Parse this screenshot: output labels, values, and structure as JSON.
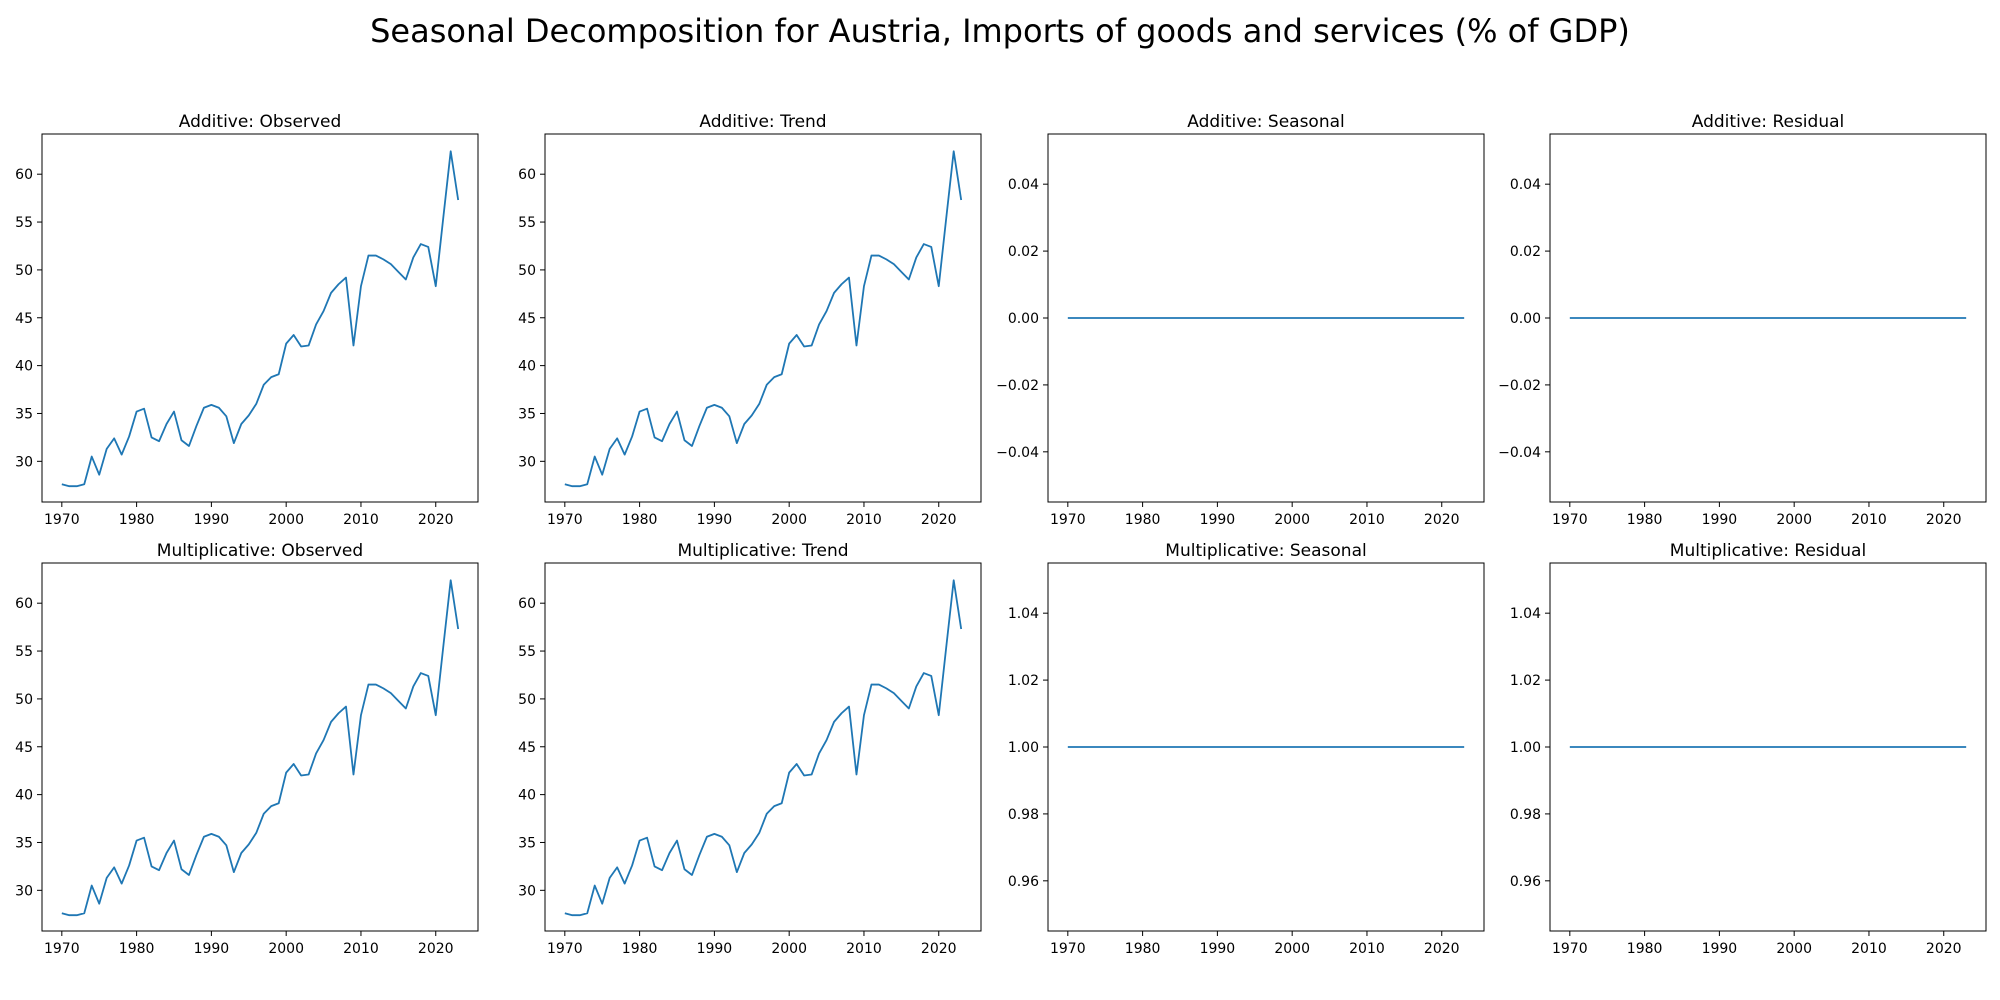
{
  "figure": {
    "title": "Seasonal Decomposition for Austria, Imports of goods and services (% of GDP)",
    "line_color": "#1f77b4"
  },
  "chart_data": [
    {
      "type": "line",
      "title": "Additive: Observed",
      "xlabel": "",
      "ylabel": "",
      "xlim": [
        1967.35,
        2025.65
      ],
      "ylim": [
        25.75,
        64.2
      ],
      "xticks": [
        1970,
        1980,
        1990,
        2000,
        2010,
        2020
      ],
      "yticks": [
        30,
        35,
        40,
        45,
        50,
        55,
        60
      ],
      "ytick_labels": [
        "30",
        "35",
        "40",
        "45",
        "50",
        "55",
        "60"
      ],
      "grid": false,
      "series": [
        {
          "x": [
            1970,
            1971,
            1972,
            1973,
            1974,
            1975,
            1976,
            1977,
            1978,
            1979,
            1980,
            1981,
            1982,
            1983,
            1984,
            1985,
            1986,
            1987,
            1988,
            1989,
            1990,
            1991,
            1992,
            1993,
            1994,
            1995,
            1996,
            1997,
            1998,
            1999,
            2000,
            2001,
            2002,
            2003,
            2004,
            2005,
            2006,
            2007,
            2008,
            2009,
            2010,
            2011,
            2012,
            2013,
            2014,
            2015,
            2016,
            2017,
            2018,
            2019,
            2020,
            2021,
            2022,
            2023
          ],
          "values": [
            27.6,
            27.4,
            27.4,
            27.6,
            30.5,
            28.6,
            31.3,
            32.4,
            30.7,
            32.6,
            35.2,
            35.5,
            32.5,
            32.1,
            33.9,
            35.2,
            32.2,
            31.6,
            33.7,
            35.6,
            35.9,
            35.6,
            34.7,
            31.9,
            33.9,
            34.8,
            36.0,
            38.0,
            38.8,
            39.1,
            42.3,
            43.2,
            42.0,
            42.1,
            44.3,
            45.7,
            47.6,
            48.5,
            49.2,
            42.1,
            48.3,
            51.5,
            51.5,
            51.1,
            50.6,
            49.8,
            49.0,
            51.3,
            52.7,
            52.4,
            48.3,
            55.4,
            62.4,
            57.3
          ]
        }
      ]
    },
    {
      "type": "line",
      "title": "Additive: Trend",
      "xlabel": "",
      "ylabel": "",
      "xlim": [
        1967.35,
        2025.65
      ],
      "ylim": [
        25.75,
        64.2
      ],
      "xticks": [
        1970,
        1980,
        1990,
        2000,
        2010,
        2020
      ],
      "yticks": [
        30,
        35,
        40,
        45,
        50,
        55,
        60
      ],
      "ytick_labels": [
        "30",
        "35",
        "40",
        "45",
        "50",
        "55",
        "60"
      ],
      "grid": false,
      "series": [
        {
          "x": [
            1970,
            1971,
            1972,
            1973,
            1974,
            1975,
            1976,
            1977,
            1978,
            1979,
            1980,
            1981,
            1982,
            1983,
            1984,
            1985,
            1986,
            1987,
            1988,
            1989,
            1990,
            1991,
            1992,
            1993,
            1994,
            1995,
            1996,
            1997,
            1998,
            1999,
            2000,
            2001,
            2002,
            2003,
            2004,
            2005,
            2006,
            2007,
            2008,
            2009,
            2010,
            2011,
            2012,
            2013,
            2014,
            2015,
            2016,
            2017,
            2018,
            2019,
            2020,
            2021,
            2022,
            2023
          ],
          "values": [
            27.6,
            27.4,
            27.4,
            27.6,
            30.5,
            28.6,
            31.3,
            32.4,
            30.7,
            32.6,
            35.2,
            35.5,
            32.5,
            32.1,
            33.9,
            35.2,
            32.2,
            31.6,
            33.7,
            35.6,
            35.9,
            35.6,
            34.7,
            31.9,
            33.9,
            34.8,
            36.0,
            38.0,
            38.8,
            39.1,
            42.3,
            43.2,
            42.0,
            42.1,
            44.3,
            45.7,
            47.6,
            48.5,
            49.2,
            42.1,
            48.3,
            51.5,
            51.5,
            51.1,
            50.6,
            49.8,
            49.0,
            51.3,
            52.7,
            52.4,
            48.3,
            55.4,
            62.4,
            57.3
          ]
        }
      ]
    },
    {
      "type": "line",
      "title": "Additive: Seasonal",
      "xlabel": "",
      "ylabel": "",
      "xlim": [
        1967.35,
        2025.65
      ],
      "ylim": [
        -0.055,
        0.055
      ],
      "xticks": [
        1970,
        1980,
        1990,
        2000,
        2010,
        2020
      ],
      "yticks": [
        -0.04,
        -0.02,
        0.0,
        0.02,
        0.04
      ],
      "ytick_labels": [
        "−0.04",
        "−0.02",
        "0.00",
        "0.02",
        "0.04"
      ],
      "grid": false,
      "series": [
        {
          "x": [
            1970,
            2023
          ],
          "values": [
            0.0,
            0.0
          ]
        }
      ]
    },
    {
      "type": "line",
      "title": "Additive: Residual",
      "xlabel": "",
      "ylabel": "",
      "xlim": [
        1967.35,
        2025.65
      ],
      "ylim": [
        -0.055,
        0.055
      ],
      "xticks": [
        1970,
        1980,
        1990,
        2000,
        2010,
        2020
      ],
      "yticks": [
        -0.04,
        -0.02,
        0.0,
        0.02,
        0.04
      ],
      "ytick_labels": [
        "−0.04",
        "−0.02",
        "0.00",
        "0.02",
        "0.04"
      ],
      "grid": false,
      "series": [
        {
          "x": [
            1970,
            2023
          ],
          "values": [
            0.0,
            0.0
          ]
        }
      ]
    },
    {
      "type": "line",
      "title": "Multiplicative: Observed",
      "xlabel": "",
      "ylabel": "",
      "xlim": [
        1967.35,
        2025.65
      ],
      "ylim": [
        25.75,
        64.2
      ],
      "xticks": [
        1970,
        1980,
        1990,
        2000,
        2010,
        2020
      ],
      "yticks": [
        30,
        35,
        40,
        45,
        50,
        55,
        60
      ],
      "ytick_labels": [
        "30",
        "35",
        "40",
        "45",
        "50",
        "55",
        "60"
      ],
      "grid": false,
      "series": [
        {
          "x": [
            1970,
            1971,
            1972,
            1973,
            1974,
            1975,
            1976,
            1977,
            1978,
            1979,
            1980,
            1981,
            1982,
            1983,
            1984,
            1985,
            1986,
            1987,
            1988,
            1989,
            1990,
            1991,
            1992,
            1993,
            1994,
            1995,
            1996,
            1997,
            1998,
            1999,
            2000,
            2001,
            2002,
            2003,
            2004,
            2005,
            2006,
            2007,
            2008,
            2009,
            2010,
            2011,
            2012,
            2013,
            2014,
            2015,
            2016,
            2017,
            2018,
            2019,
            2020,
            2021,
            2022,
            2023
          ],
          "values": [
            27.6,
            27.4,
            27.4,
            27.6,
            30.5,
            28.6,
            31.3,
            32.4,
            30.7,
            32.6,
            35.2,
            35.5,
            32.5,
            32.1,
            33.9,
            35.2,
            32.2,
            31.6,
            33.7,
            35.6,
            35.9,
            35.6,
            34.7,
            31.9,
            33.9,
            34.8,
            36.0,
            38.0,
            38.8,
            39.1,
            42.3,
            43.2,
            42.0,
            42.1,
            44.3,
            45.7,
            47.6,
            48.5,
            49.2,
            42.1,
            48.3,
            51.5,
            51.5,
            51.1,
            50.6,
            49.8,
            49.0,
            51.3,
            52.7,
            52.4,
            48.3,
            55.4,
            62.4,
            57.3
          ]
        }
      ]
    },
    {
      "type": "line",
      "title": "Multiplicative: Trend",
      "xlabel": "",
      "ylabel": "",
      "xlim": [
        1967.35,
        2025.65
      ],
      "ylim": [
        25.75,
        64.2
      ],
      "xticks": [
        1970,
        1980,
        1990,
        2000,
        2010,
        2020
      ],
      "yticks": [
        30,
        35,
        40,
        45,
        50,
        55,
        60
      ],
      "ytick_labels": [
        "30",
        "35",
        "40",
        "45",
        "50",
        "55",
        "60"
      ],
      "grid": false,
      "series": [
        {
          "x": [
            1970,
            1971,
            1972,
            1973,
            1974,
            1975,
            1976,
            1977,
            1978,
            1979,
            1980,
            1981,
            1982,
            1983,
            1984,
            1985,
            1986,
            1987,
            1988,
            1989,
            1990,
            1991,
            1992,
            1993,
            1994,
            1995,
            1996,
            1997,
            1998,
            1999,
            2000,
            2001,
            2002,
            2003,
            2004,
            2005,
            2006,
            2007,
            2008,
            2009,
            2010,
            2011,
            2012,
            2013,
            2014,
            2015,
            2016,
            2017,
            2018,
            2019,
            2020,
            2021,
            2022,
            2023
          ],
          "values": [
            27.6,
            27.4,
            27.4,
            27.6,
            30.5,
            28.6,
            31.3,
            32.4,
            30.7,
            32.6,
            35.2,
            35.5,
            32.5,
            32.1,
            33.9,
            35.2,
            32.2,
            31.6,
            33.7,
            35.6,
            35.9,
            35.6,
            34.7,
            31.9,
            33.9,
            34.8,
            36.0,
            38.0,
            38.8,
            39.1,
            42.3,
            43.2,
            42.0,
            42.1,
            44.3,
            45.7,
            47.6,
            48.5,
            49.2,
            42.1,
            48.3,
            51.5,
            51.5,
            51.1,
            50.6,
            49.8,
            49.0,
            51.3,
            52.7,
            52.4,
            48.3,
            55.4,
            62.4,
            57.3
          ]
        }
      ]
    },
    {
      "type": "line",
      "title": "Multiplicative: Seasonal",
      "xlabel": "",
      "ylabel": "",
      "xlim": [
        1967.35,
        2025.65
      ],
      "ylim": [
        0.945,
        1.055
      ],
      "xticks": [
        1970,
        1980,
        1990,
        2000,
        2010,
        2020
      ],
      "yticks": [
        0.96,
        0.98,
        1.0,
        1.02,
        1.04
      ],
      "ytick_labels": [
        "0.96",
        "0.98",
        "1.00",
        "1.02",
        "1.04"
      ],
      "grid": false,
      "series": [
        {
          "x": [
            1970,
            2023
          ],
          "values": [
            1.0,
            1.0
          ]
        }
      ]
    },
    {
      "type": "line",
      "title": "Multiplicative: Residual",
      "xlabel": "",
      "ylabel": "",
      "xlim": [
        1967.35,
        2025.65
      ],
      "ylim": [
        0.945,
        1.055
      ],
      "xticks": [
        1970,
        1980,
        1990,
        2000,
        2010,
        2020
      ],
      "yticks": [
        0.96,
        0.98,
        1.0,
        1.02,
        1.04
      ],
      "ytick_labels": [
        "0.96",
        "0.98",
        "1.00",
        "1.02",
        "1.04"
      ],
      "grid": false,
      "series": [
        {
          "x": [
            1970,
            2023
          ],
          "values": [
            1.0,
            1.0
          ]
        }
      ]
    }
  ]
}
